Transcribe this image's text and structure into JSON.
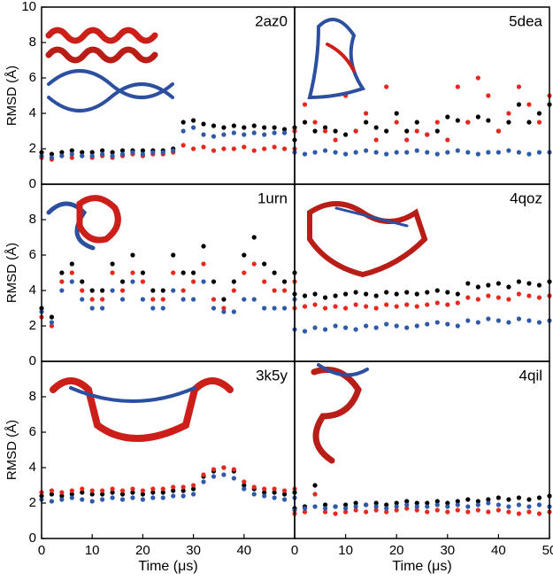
{
  "chart_data": [
    {
      "type": "scatter",
      "title": "2az0",
      "ylabel": "RMSD (Å)",
      "xlim": [
        0,
        50
      ],
      "ylim": [
        0,
        10
      ],
      "yticks": [
        0,
        2,
        4,
        6,
        8,
        10
      ],
      "x": [
        0,
        2,
        4,
        6,
        8,
        10,
        12,
        14,
        16,
        18,
        20,
        22,
        24,
        26,
        28,
        30,
        32,
        34,
        36,
        38,
        40,
        42,
        44,
        46,
        48,
        50
      ],
      "series": [
        {
          "color": "#000000",
          "values": [
            1.8,
            1.7,
            1.8,
            1.9,
            1.8,
            1.8,
            1.9,
            1.8,
            1.9,
            1.9,
            1.9,
            1.9,
            1.9,
            2.0,
            3.5,
            3.6,
            3.4,
            3.3,
            3.2,
            3.3,
            3.2,
            3.3,
            3.2,
            3.2,
            3.1,
            3.2
          ]
        },
        {
          "color": "#e8281e",
          "values": [
            1.5,
            1.4,
            1.6,
            1.5,
            1.6,
            1.5,
            1.6,
            1.5,
            1.6,
            1.7,
            1.6,
            1.7,
            1.7,
            1.8,
            2.2,
            2.0,
            2.1,
            1.9,
            2.0,
            2.0,
            2.1,
            1.9,
            2.0,
            2.1,
            2.0,
            2.0
          ]
        },
        {
          "color": "#2e5aa8",
          "values": [
            1.6,
            1.5,
            1.6,
            1.7,
            1.6,
            1.6,
            1.7,
            1.6,
            1.7,
            1.8,
            1.7,
            1.8,
            1.8,
            1.9,
            3.0,
            3.2,
            2.8,
            2.7,
            2.8,
            2.9,
            2.8,
            2.9,
            2.8,
            2.9,
            2.9,
            3.0
          ]
        }
      ]
    },
    {
      "type": "scatter",
      "title": "5dea",
      "xlim": [
        0,
        50
      ],
      "ylim": [
        0,
        10
      ],
      "x": [
        0,
        2,
        4,
        6,
        8,
        10,
        12,
        14,
        16,
        18,
        20,
        22,
        24,
        26,
        28,
        30,
        32,
        34,
        36,
        38,
        40,
        42,
        44,
        46,
        48,
        50
      ],
      "series": [
        {
          "color": "#000000",
          "values": [
            2.5,
            3.5,
            3.0,
            3.2,
            3.0,
            2.8,
            3.0,
            3.5,
            3.2,
            3.0,
            4.0,
            3.0,
            3.5,
            2.8,
            3.0,
            3.8,
            3.6,
            3.5,
            3.8,
            3.6,
            3.0,
            3.5,
            4.5,
            3.5,
            4.0,
            4.5
          ]
        },
        {
          "color": "#e8281e",
          "values": [
            3.0,
            4.5,
            3.5,
            3.0,
            2.5,
            5.0,
            3.0,
            4.0,
            2.5,
            5.5,
            3.5,
            2.5,
            3.0,
            2.8,
            3.5,
            2.5,
            5.5,
            3.5,
            6.0,
            5.0,
            3.0,
            4.0,
            5.5,
            4.5,
            3.5,
            5.0
          ]
        },
        {
          "color": "#2e5aa8",
          "values": [
            1.8,
            1.7,
            1.8,
            1.9,
            1.8,
            1.7,
            1.8,
            1.9,
            1.8,
            1.7,
            1.8,
            1.8,
            1.9,
            1.8,
            1.7,
            1.8,
            1.9,
            1.8,
            1.7,
            1.8,
            1.8,
            1.9,
            1.8,
            1.7,
            1.8,
            1.8
          ]
        }
      ]
    },
    {
      "type": "scatter",
      "title": "1urn",
      "ylabel": "RMSD (Å)",
      "xlim": [
        0,
        50
      ],
      "ylim": [
        0,
        10
      ],
      "yticks": [
        0,
        2,
        4,
        6,
        8
      ],
      "x": [
        0,
        2,
        4,
        6,
        8,
        10,
        12,
        14,
        16,
        18,
        20,
        22,
        24,
        26,
        28,
        30,
        32,
        34,
        36,
        38,
        40,
        42,
        44,
        46,
        48,
        50
      ],
      "series": [
        {
          "color": "#000000",
          "values": [
            3.0,
            2.5,
            5.0,
            5.5,
            4.5,
            4.0,
            4.0,
            5.5,
            4.5,
            6.0,
            5.0,
            4.0,
            4.0,
            6.0,
            5.0,
            5.0,
            6.5,
            4.5,
            3.5,
            4.5,
            6.0,
            7.0,
            5.5,
            5.0,
            4.5,
            5.0
          ]
        },
        {
          "color": "#e8281e",
          "values": [
            2.5,
            2.0,
            4.5,
            5.0,
            4.0,
            3.5,
            3.5,
            5.0,
            4.0,
            5.0,
            4.5,
            3.5,
            3.5,
            5.0,
            4.0,
            4.5,
            5.5,
            3.5,
            3.0,
            4.0,
            5.0,
            5.5,
            4.5,
            4.0,
            4.0,
            4.5
          ]
        },
        {
          "color": "#2e5aa8",
          "values": [
            2.8,
            2.2,
            4.0,
            4.5,
            3.5,
            3.0,
            3.0,
            4.0,
            3.5,
            4.5,
            3.5,
            3.0,
            3.0,
            4.0,
            3.5,
            3.5,
            4.5,
            3.0,
            2.8,
            2.8,
            3.5,
            3.5,
            3.0,
            3.0,
            3.0,
            3.5
          ]
        }
      ]
    },
    {
      "type": "scatter",
      "title": "4qoz",
      "xlim": [
        0,
        50
      ],
      "ylim": [
        0,
        10
      ],
      "x": [
        0,
        2,
        4,
        6,
        8,
        10,
        12,
        14,
        16,
        18,
        20,
        22,
        24,
        26,
        28,
        30,
        32,
        34,
        36,
        38,
        40,
        42,
        44,
        46,
        48,
        50
      ],
      "series": [
        {
          "color": "#000000",
          "values": [
            3.8,
            3.7,
            3.8,
            3.6,
            3.7,
            3.8,
            3.9,
            3.8,
            3.7,
            3.9,
            3.8,
            3.9,
            3.8,
            3.9,
            4.0,
            3.9,
            3.8,
            4.4,
            4.2,
            4.3,
            4.4,
            4.2,
            4.5,
            4.4,
            4.3,
            4.5
          ]
        },
        {
          "color": "#e8281e",
          "values": [
            3.0,
            3.1,
            3.2,
            3.0,
            3.1,
            3.0,
            3.2,
            3.1,
            3.0,
            3.2,
            3.1,
            3.2,
            3.1,
            3.2,
            3.3,
            3.2,
            3.3,
            3.6,
            3.5,
            3.7,
            3.6,
            3.5,
            3.8,
            3.7,
            3.6,
            3.7
          ]
        },
        {
          "color": "#2e5aa8",
          "values": [
            1.8,
            1.7,
            1.9,
            1.8,
            2.0,
            1.9,
            1.8,
            2.0,
            1.9,
            2.1,
            2.0,
            1.9,
            2.0,
            2.1,
            2.2,
            2.1,
            2.0,
            2.3,
            2.2,
            2.4,
            2.3,
            2.2,
            2.4,
            2.3,
            2.2,
            2.3
          ]
        }
      ]
    },
    {
      "type": "scatter",
      "title": "3k5y",
      "ylabel": "RMSD (Å)",
      "xlabel": "Time (μs)",
      "xlim": [
        0,
        50
      ],
      "ylim": [
        0,
        10
      ],
      "yticks": [
        0,
        2,
        4,
        6,
        8
      ],
      "xticks": [
        0,
        10,
        20,
        30,
        40
      ],
      "x": [
        0,
        2,
        4,
        6,
        8,
        10,
        12,
        14,
        16,
        18,
        20,
        22,
        24,
        26,
        28,
        30,
        32,
        34,
        36,
        38,
        40,
        42,
        44,
        46,
        48,
        50
      ],
      "series": [
        {
          "color": "#000000",
          "values": [
            2.4,
            2.5,
            2.4,
            2.5,
            2.6,
            2.5,
            2.5,
            2.6,
            2.5,
            2.6,
            2.5,
            2.6,
            2.6,
            2.7,
            2.7,
            2.8,
            3.5,
            3.8,
            4.0,
            3.8,
            3.0,
            2.8,
            2.6,
            2.6,
            2.5,
            2.6
          ]
        },
        {
          "color": "#e8281e",
          "values": [
            2.6,
            2.7,
            2.6,
            2.7,
            2.8,
            2.7,
            2.7,
            2.8,
            2.7,
            2.8,
            2.7,
            2.8,
            2.8,
            2.9,
            2.9,
            3.0,
            3.6,
            3.9,
            4.0,
            3.9,
            3.2,
            2.9,
            2.8,
            2.8,
            2.7,
            2.8
          ]
        },
        {
          "color": "#2e5aa8",
          "values": [
            2.2,
            2.1,
            2.2,
            2.3,
            2.2,
            2.1,
            2.2,
            2.3,
            2.2,
            2.3,
            2.2,
            2.3,
            2.3,
            2.4,
            2.4,
            2.5,
            3.2,
            3.5,
            3.6,
            3.4,
            2.8,
            2.5,
            2.4,
            2.3,
            2.2,
            2.3
          ]
        }
      ]
    },
    {
      "type": "scatter",
      "title": "4qil",
      "xlabel": "Time (μs)",
      "xlim": [
        0,
        50
      ],
      "ylim": [
        0,
        10
      ],
      "xticks": [
        0,
        10,
        20,
        30,
        40,
        50
      ],
      "x": [
        0,
        2,
        4,
        6,
        8,
        10,
        12,
        14,
        16,
        18,
        20,
        22,
        24,
        26,
        28,
        30,
        32,
        34,
        36,
        38,
        40,
        42,
        44,
        46,
        48,
        50
      ],
      "series": [
        {
          "color": "#000000",
          "values": [
            1.7,
            1.8,
            3.0,
            1.9,
            1.8,
            1.9,
            2.0,
            1.9,
            2.0,
            1.9,
            2.0,
            2.1,
            2.0,
            2.0,
            2.1,
            2.0,
            2.1,
            2.2,
            2.1,
            2.2,
            2.3,
            2.2,
            2.3,
            2.2,
            2.3,
            2.4
          ]
        },
        {
          "color": "#e8281e",
          "values": [
            1.4,
            1.5,
            2.5,
            1.5,
            1.4,
            1.5,
            1.6,
            1.5,
            1.6,
            1.5,
            1.6,
            1.7,
            1.6,
            1.5,
            1.6,
            1.5,
            1.6,
            1.5,
            1.6,
            1.5,
            1.6,
            1.5,
            1.4,
            1.5,
            1.4,
            1.5
          ]
        },
        {
          "color": "#2e5aa8",
          "values": [
            1.6,
            1.7,
            1.8,
            1.7,
            1.8,
            1.7,
            1.8,
            1.9,
            1.8,
            1.7,
            1.8,
            1.9,
            1.8,
            1.8,
            1.9,
            1.8,
            1.9,
            1.8,
            1.9,
            2.0,
            1.9,
            1.8,
            1.9,
            1.8,
            1.9,
            1.8
          ]
        }
      ]
    }
  ]
}
